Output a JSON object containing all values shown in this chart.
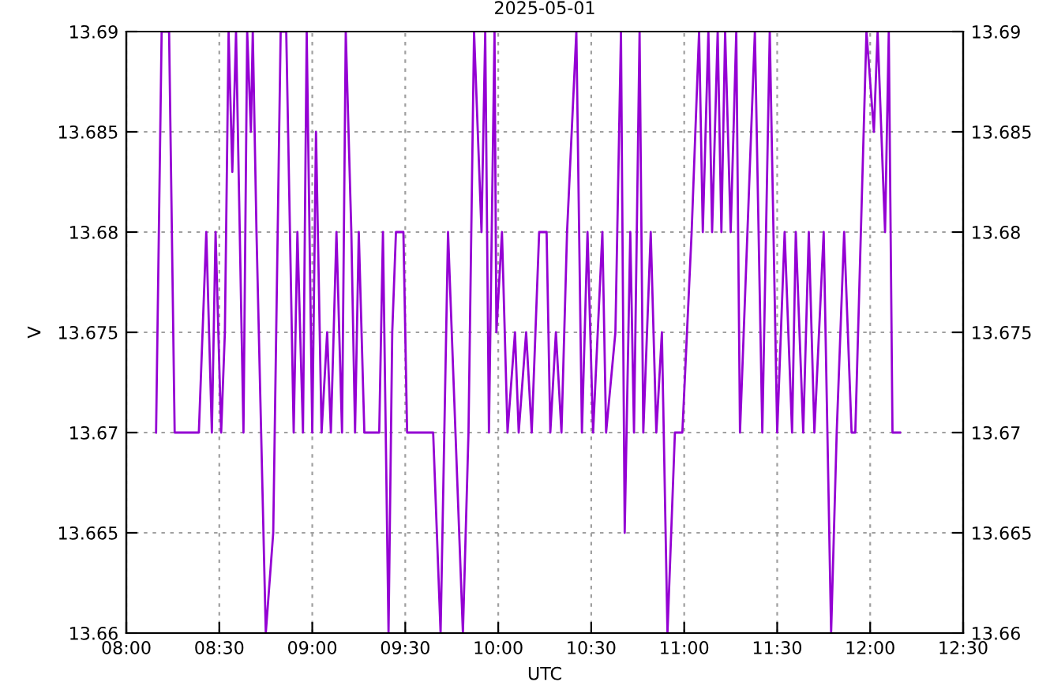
{
  "chart_data": {
    "type": "line",
    "title": "2025-05-01",
    "xlabel": "UTC",
    "ylabel": "V",
    "xlim": [
      8,
      12.5
    ],
    "xticks": [
      {
        "value": 8,
        "label": "08:00"
      },
      {
        "value": 8.5,
        "label": "08:30"
      },
      {
        "value": 9,
        "label": "09:00"
      },
      {
        "value": 9.5,
        "label": "09:30"
      },
      {
        "value": 10,
        "label": "10:00"
      },
      {
        "value": 10.5,
        "label": "10:30"
      },
      {
        "value": 11,
        "label": "11:00"
      },
      {
        "value": 11.5,
        "label": "11:30"
      },
      {
        "value": 12,
        "label": "12:00"
      },
      {
        "value": 12.5,
        "label": "12:30"
      }
    ],
    "ylim": [
      13.66,
      13.69
    ],
    "yticks": [
      13.66,
      13.665,
      13.67,
      13.675,
      13.68,
      13.685,
      13.69
    ],
    "y2lim": [
      13.66,
      13.69
    ],
    "y2ticks": [
      13.66,
      13.665,
      13.67,
      13.675,
      13.68,
      13.685,
      13.69
    ],
    "grid": true,
    "marker": "none",
    "line_style": "solid",
    "series": [
      {
        "color": "#9400d3",
        "x": [
          8.16,
          8.19,
          8.23,
          8.26,
          8.39,
          8.43,
          8.46,
          8.48,
          8.51,
          8.53,
          8.55,
          8.57,
          8.59,
          8.61,
          8.63,
          8.65,
          8.67,
          8.68,
          8.7,
          8.75,
          8.79,
          8.83,
          8.86,
          8.9,
          8.92,
          8.95,
          8.97,
          9.0,
          9.02,
          9.05,
          9.08,
          9.1,
          9.13,
          9.16,
          9.18,
          9.21,
          9.23,
          9.25,
          9.28,
          9.36,
          9.38,
          9.41,
          9.43,
          9.45,
          9.49,
          9.51,
          9.65,
          9.69,
          9.73,
          9.77,
          9.81,
          9.84,
          9.87,
          9.91,
          9.93,
          9.95,
          9.98,
          9.99,
          10.02,
          10.05,
          10.09,
          10.11,
          10.15,
          10.18,
          10.22,
          10.26,
          10.28,
          10.31,
          10.34,
          10.37,
          10.42,
          10.45,
          10.48,
          10.51,
          10.56,
          10.58,
          10.63,
          10.66,
          10.68,
          10.71,
          10.73,
          10.76,
          10.78,
          10.82,
          10.85,
          10.88,
          10.91,
          10.95,
          10.99,
          11.04,
          11.08,
          11.1,
          11.13,
          11.15,
          11.18,
          11.2,
          11.22,
          11.25,
          11.28,
          11.3,
          11.38,
          11.42,
          11.46,
          11.5,
          11.54,
          11.58,
          11.6,
          11.64,
          11.67,
          11.7,
          11.75,
          11.79,
          11.82,
          11.86,
          11.9,
          11.92,
          11.98,
          12.02,
          12.04,
          12.08,
          12.1,
          12.12,
          12.16
        ],
        "values": [
          13.67,
          13.69,
          13.69,
          13.67,
          13.67,
          13.68,
          13.67,
          13.68,
          13.67,
          13.675,
          13.69,
          13.683,
          13.69,
          13.68,
          13.67,
          13.69,
          13.685,
          13.69,
          13.68,
          13.66,
          13.665,
          13.69,
          13.69,
          13.67,
          13.68,
          13.67,
          13.69,
          13.67,
          13.685,
          13.67,
          13.675,
          13.67,
          13.68,
          13.67,
          13.69,
          13.68,
          13.67,
          13.68,
          13.67,
          13.67,
          13.68,
          13.66,
          13.675,
          13.68,
          13.68,
          13.67,
          13.67,
          13.66,
          13.68,
          13.67,
          13.66,
          13.67,
          13.69,
          13.68,
          13.69,
          13.67,
          13.69,
          13.675,
          13.68,
          13.67,
          13.675,
          13.67,
          13.675,
          13.67,
          13.68,
          13.68,
          13.67,
          13.675,
          13.67,
          13.68,
          13.69,
          13.67,
          13.68,
          13.67,
          13.68,
          13.67,
          13.675,
          13.69,
          13.665,
          13.68,
          13.67,
          13.69,
          13.67,
          13.68,
          13.67,
          13.675,
          13.66,
          13.67,
          13.67,
          13.68,
          13.69,
          13.68,
          13.69,
          13.68,
          13.69,
          13.68,
          13.69,
          13.68,
          13.69,
          13.67,
          13.69,
          13.67,
          13.69,
          13.67,
          13.68,
          13.67,
          13.68,
          13.67,
          13.68,
          13.67,
          13.68,
          13.66,
          13.67,
          13.68,
          13.67,
          13.67,
          13.69,
          13.685,
          13.69,
          13.68,
          13.69,
          13.67,
          13.67
        ]
      }
    ]
  }
}
